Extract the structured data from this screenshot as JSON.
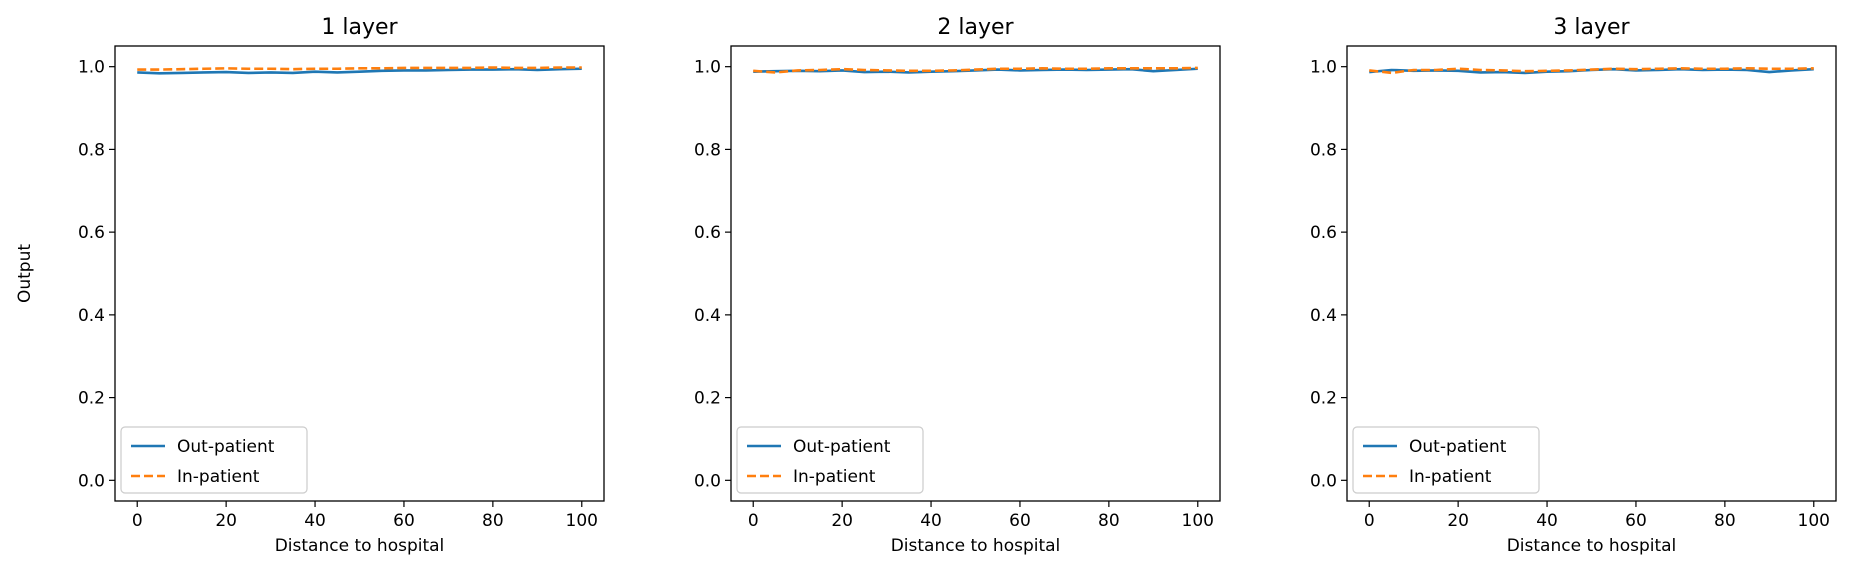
{
  "chart_data": [
    {
      "type": "line",
      "title": "1 layer",
      "xlabel": "Distance to hospital",
      "ylabel": "Output",
      "xlim": [
        -5,
        105
      ],
      "ylim": [
        -0.05,
        1.05
      ],
      "xticks": [
        0,
        20,
        40,
        60,
        80,
        100
      ],
      "yticks": [
        0.0,
        0.2,
        0.4,
        0.6,
        0.8,
        1.0
      ],
      "legend_position": "lower-left",
      "x": [
        0,
        5,
        10,
        15,
        20,
        25,
        30,
        35,
        40,
        45,
        50,
        55,
        60,
        65,
        70,
        75,
        80,
        85,
        90,
        95,
        100
      ],
      "series": [
        {
          "name": "Out-patient",
          "color": "#1f77b4",
          "style": "solid",
          "values": [
            0.986,
            0.984,
            0.985,
            0.986,
            0.987,
            0.985,
            0.986,
            0.985,
            0.988,
            0.986,
            0.988,
            0.99,
            0.991,
            0.991,
            0.992,
            0.993,
            0.993,
            0.994,
            0.992,
            0.994,
            0.995
          ]
        },
        {
          "name": "In-patient",
          "color": "#ff7f0e",
          "style": "dashed",
          "values": [
            0.993,
            0.993,
            0.994,
            0.995,
            0.996,
            0.995,
            0.995,
            0.994,
            0.995,
            0.995,
            0.996,
            0.996,
            0.997,
            0.997,
            0.997,
            0.997,
            0.998,
            0.997,
            0.997,
            0.998,
            0.998
          ]
        }
      ]
    },
    {
      "type": "line",
      "title": "2 layer",
      "xlabel": "Distance to hospital",
      "ylabel": "",
      "xlim": [
        -5,
        105
      ],
      "ylim": [
        -0.05,
        1.05
      ],
      "xticks": [
        0,
        20,
        40,
        60,
        80,
        100
      ],
      "yticks": [
        0.0,
        0.2,
        0.4,
        0.6,
        0.8,
        1.0
      ],
      "legend_position": "lower-left",
      "x": [
        0,
        5,
        10,
        15,
        20,
        25,
        30,
        35,
        40,
        45,
        50,
        55,
        60,
        65,
        70,
        75,
        80,
        85,
        90,
        95,
        100
      ],
      "series": [
        {
          "name": "Out-patient",
          "color": "#1f77b4",
          "style": "solid",
          "values": [
            0.988,
            0.989,
            0.99,
            0.989,
            0.991,
            0.987,
            0.988,
            0.986,
            0.988,
            0.989,
            0.991,
            0.993,
            0.991,
            0.992,
            0.993,
            0.992,
            0.993,
            0.994,
            0.989,
            0.992,
            0.995
          ]
        },
        {
          "name": "In-patient",
          "color": "#ff7f0e",
          "style": "dashed",
          "values": [
            0.99,
            0.986,
            0.991,
            0.992,
            0.994,
            0.992,
            0.991,
            0.99,
            0.99,
            0.991,
            0.993,
            0.995,
            0.995,
            0.996,
            0.995,
            0.995,
            0.996,
            0.996,
            0.996,
            0.996,
            0.997
          ]
        }
      ]
    },
    {
      "type": "line",
      "title": "3 layer",
      "xlabel": "Distance to hospital",
      "ylabel": "",
      "xlim": [
        -5,
        105
      ],
      "ylim": [
        -0.05,
        1.05
      ],
      "xticks": [
        0,
        20,
        40,
        60,
        80,
        100
      ],
      "yticks": [
        0.0,
        0.2,
        0.4,
        0.6,
        0.8,
        1.0
      ],
      "legend_position": "lower-left",
      "x": [
        0,
        5,
        10,
        15,
        20,
        25,
        30,
        35,
        40,
        45,
        50,
        55,
        60,
        65,
        70,
        75,
        80,
        85,
        90,
        95,
        100
      ],
      "series": [
        {
          "name": "Out-patient",
          "color": "#1f77b4",
          "style": "solid",
          "values": [
            0.987,
            0.992,
            0.99,
            0.991,
            0.99,
            0.986,
            0.987,
            0.985,
            0.988,
            0.989,
            0.992,
            0.994,
            0.991,
            0.992,
            0.994,
            0.992,
            0.993,
            0.992,
            0.987,
            0.991,
            0.994
          ]
        },
        {
          "name": "In-patient",
          "color": "#ff7f0e",
          "style": "dashed",
          "values": [
            0.991,
            0.985,
            0.992,
            0.992,
            0.995,
            0.992,
            0.991,
            0.989,
            0.99,
            0.991,
            0.993,
            0.995,
            0.994,
            0.995,
            0.996,
            0.995,
            0.995,
            0.996,
            0.995,
            0.995,
            0.996
          ]
        }
      ]
    }
  ]
}
